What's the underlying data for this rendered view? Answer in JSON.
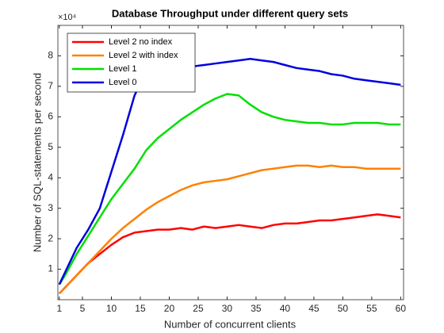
{
  "chart_data": {
    "type": "line",
    "title": "Database Throughput under different query sets",
    "xlabel": "Number of concurrent clients",
    "ylabel": "Number of SQL-statements per second",
    "y_multiplier": "×10⁴",
    "x": [
      1,
      2,
      4,
      6,
      8,
      10,
      12,
      14,
      16,
      18,
      20,
      22,
      24,
      26,
      28,
      30,
      32,
      34,
      36,
      38,
      40,
      42,
      44,
      46,
      48,
      50,
      52,
      54,
      56,
      58,
      60
    ],
    "series": [
      {
        "name": "Level 2 no index",
        "color": "#ff0000",
        "values": [
          0.2,
          0.4,
          0.8,
          1.2,
          1.5,
          1.8,
          2.05,
          2.2,
          2.25,
          2.3,
          2.3,
          2.35,
          2.3,
          2.4,
          2.35,
          2.4,
          2.45,
          2.4,
          2.35,
          2.45,
          2.5,
          2.5,
          2.55,
          2.6,
          2.6,
          2.65,
          2.7,
          2.75,
          2.8,
          2.75,
          2.7
        ]
      },
      {
        "name": "Level 2 with index",
        "color": "#ff8000",
        "values": [
          0.2,
          0.4,
          0.8,
          1.2,
          1.6,
          2.0,
          2.35,
          2.65,
          2.95,
          3.2,
          3.4,
          3.6,
          3.75,
          3.85,
          3.9,
          3.95,
          4.05,
          4.15,
          4.25,
          4.3,
          4.35,
          4.4,
          4.4,
          4.35,
          4.4,
          4.35,
          4.35,
          4.3,
          4.3,
          4.3,
          4.3
        ]
      },
      {
        "name": "Level 1",
        "color": "#00e000",
        "values": [
          0.5,
          0.8,
          1.5,
          2.1,
          2.7,
          3.3,
          3.8,
          4.3,
          4.9,
          5.3,
          5.6,
          5.9,
          6.15,
          6.4,
          6.6,
          6.75,
          6.7,
          6.4,
          6.15,
          6.0,
          5.9,
          5.85,
          5.8,
          5.8,
          5.75,
          5.75,
          5.8,
          5.8,
          5.8,
          5.75,
          5.75
        ]
      },
      {
        "name": "Level 0",
        "color": "#0000e0",
        "values": [
          0.5,
          0.9,
          1.7,
          2.3,
          3.0,
          4.2,
          5.4,
          6.7,
          7.5,
          7.55,
          7.6,
          7.6,
          7.65,
          7.7,
          7.75,
          7.8,
          7.85,
          7.9,
          7.85,
          7.8,
          7.7,
          7.6,
          7.55,
          7.5,
          7.4,
          7.35,
          7.25,
          7.2,
          7.15,
          7.1,
          7.05
        ]
      }
    ],
    "xlim": [
      0.75,
      60.5
    ],
    "ylim": [
      0,
      9
    ],
    "xticks": [
      1,
      5,
      10,
      15,
      20,
      25,
      30,
      35,
      40,
      45,
      50,
      55,
      60
    ],
    "yticks": [
      1,
      2,
      3,
      4,
      5,
      6,
      7,
      8
    ],
    "legend": "upper left"
  }
}
